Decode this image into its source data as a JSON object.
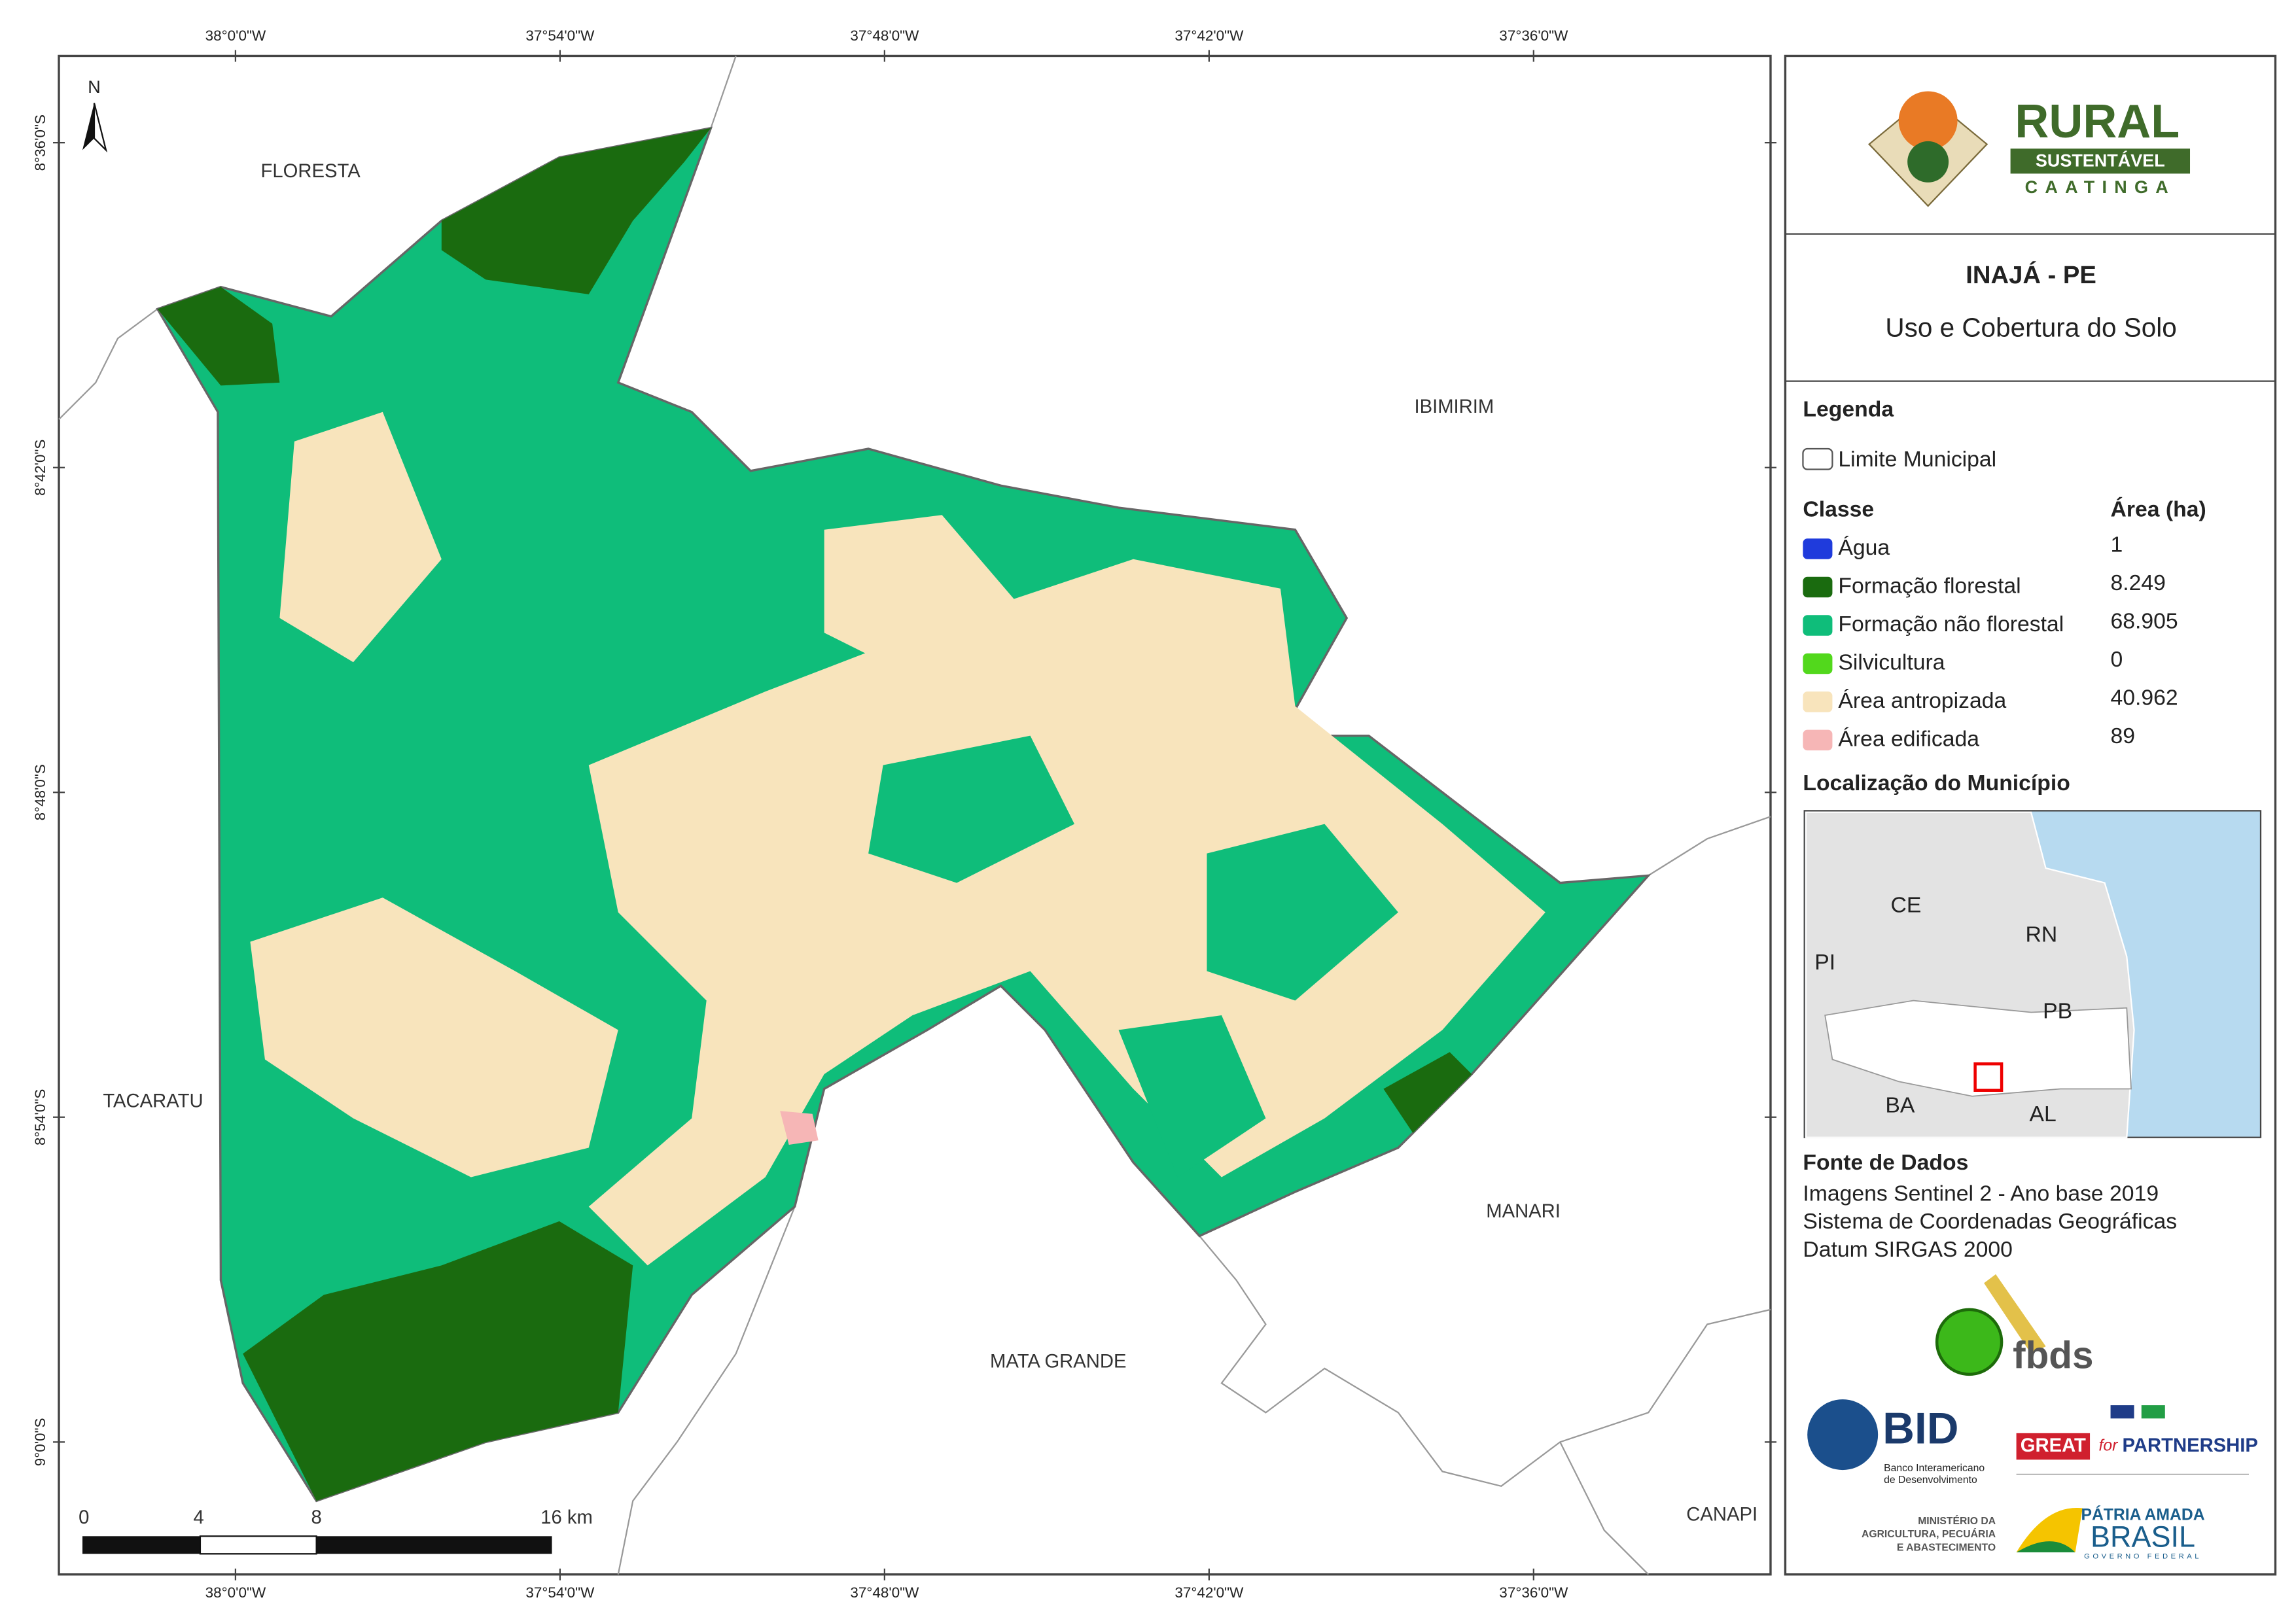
{
  "map": {
    "north": "N",
    "lon_labels": [
      "38°0'0\"W",
      "37°54'0\"W",
      "37°48'0\"W",
      "37°42'0\"W",
      "37°36'0\"W"
    ],
    "lat_labels": [
      "8°36'0\"S",
      "8°42'0\"S",
      "8°48'0\"S",
      "8°54'0\"S",
      "9°0'0\"S"
    ],
    "places": [
      "FLORESTA",
      "IBIMIRIM",
      "TACARATU",
      "MANARI",
      "MATA GRANDE",
      "CANAPI"
    ]
  },
  "scale_bar": {
    "labels": [
      "0",
      "4",
      "8",
      "16 km"
    ]
  },
  "header": {
    "logo": {
      "line1": "RURAL",
      "line2": "SUSTENTÁVEL",
      "line3": "CAATINGA"
    },
    "title": "INAJÁ - PE",
    "subtitle": "Uso e Cobertura do Solo"
  },
  "legend": {
    "title": "Legenda",
    "boundary": "Limite Municipal",
    "class_header": "Classe",
    "area_header": "Área (ha)",
    "classes": [
      {
        "name": "Água",
        "area": "1",
        "color": "#1f3bdc"
      },
      {
        "name": "Formação florestal",
        "area": "8.249",
        "color": "#1a6b0f"
      },
      {
        "name": "Formação não florestal",
        "area": "68.905",
        "color": "#0fbd7a"
      },
      {
        "name": "Silvicultura",
        "area": "0",
        "color": "#52d81c"
      },
      {
        "name": "Área antropizada",
        "area": "40.962",
        "color": "#f8e4bc"
      },
      {
        "name": "Área edificada",
        "area": "89",
        "color": "#f6b6b6"
      }
    ]
  },
  "location": {
    "title": "Localização do Município",
    "states": [
      "CE",
      "RN",
      "PI",
      "PB",
      "BA",
      "AL"
    ]
  },
  "sources": {
    "title": "Fonte de Dados",
    "lines": [
      "Imagens Sentinel 2 - Ano base 2019",
      "Sistema de Coordenadas Geográficas",
      "Datum SIRGAS 2000"
    ]
  },
  "logos": {
    "fbds": "fbds",
    "bid": "BID",
    "bid_name": [
      "Banco Interamericano",
      "de Desenvolvimento"
    ],
    "great": "GREAT",
    "great_for": "for",
    "partnership": "PARTNERSHIP",
    "ministry": [
      "MINISTÉRIO DA",
      "AGRICULTURA, PECUÁRIA",
      "E ABASTECIMENTO"
    ],
    "patria": "PÁTRIA AMADA",
    "brasil": "BRASIL",
    "governo": "GOVERNO FEDERAL"
  }
}
